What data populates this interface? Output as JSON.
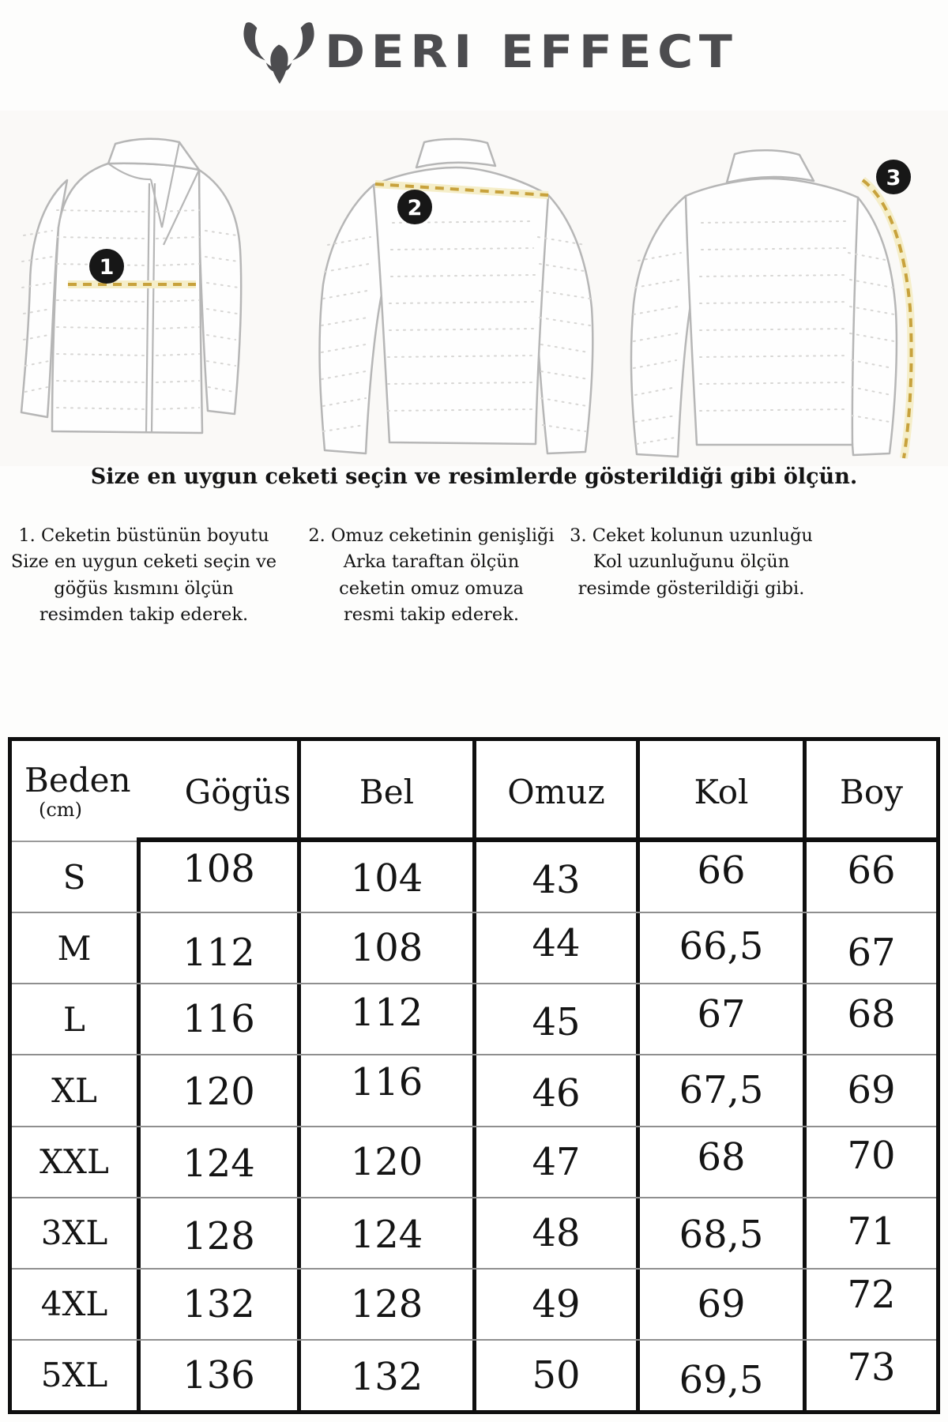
{
  "brand": {
    "logo_text": "DERI EFFECT",
    "logo_icon": "bull-icon"
  },
  "colors": {
    "logo_gray": "#4c4c4f",
    "measure_yellow": "#c8a23c",
    "marker_black": "#171717",
    "outline_gray": "#b6b6b6",
    "table_border": "#0f0f0f",
    "row_separator": "#8f8f8f"
  },
  "diagrams": [
    {
      "marker": "1",
      "view": "front-chest-measure"
    },
    {
      "marker": "2",
      "view": "back-shoulder-measure"
    },
    {
      "marker": "3",
      "view": "back-sleeve-measure"
    }
  ],
  "heading": "Size en uygun ceketi seçin ve resimlerde gösterildiği gibi ölçün.",
  "instructions": [
    "1. Ceketin büstünün boyutu\nSize en uygun ceketi seçin ve\ngöğüs kısmını ölçün\nresimden takip ederek.",
    "2. Omuz ceketinin genişliği\nArka taraftan ölçün\nceketin omuz omuza\nresmi takip ederek.",
    "3. Ceket kolunun uzunluğu\nKol uzunluğunu ölçün\nresimde gösterildiği gibi."
  ],
  "size_table": {
    "unit_label": "(cm)",
    "header": [
      "Beden",
      "Gögüs",
      "Bel",
      "Omuz",
      "Kol",
      "Boy"
    ],
    "rows": [
      {
        "size": "S",
        "values": [
          "108",
          "104",
          "43",
          "66",
          "66"
        ]
      },
      {
        "size": "M",
        "values": [
          "112",
          "108",
          "44",
          "66,5",
          "67"
        ]
      },
      {
        "size": "L",
        "values": [
          "116",
          "112",
          "45",
          "67",
          "68"
        ]
      },
      {
        "size": "XL",
        "values": [
          "120",
          "116",
          "46",
          "67,5",
          "69"
        ]
      },
      {
        "size": "XXL",
        "values": [
          "124",
          "120",
          "47",
          "68",
          "70"
        ]
      },
      {
        "size": "3XL",
        "values": [
          "128",
          "124",
          "48",
          "68,5",
          "71"
        ]
      },
      {
        "size": "4XL",
        "values": [
          "132",
          "128",
          "49",
          "69",
          "72"
        ]
      },
      {
        "size": "5XL",
        "values": [
          "136",
          "132",
          "50",
          "69,5",
          "73"
        ]
      }
    ]
  }
}
